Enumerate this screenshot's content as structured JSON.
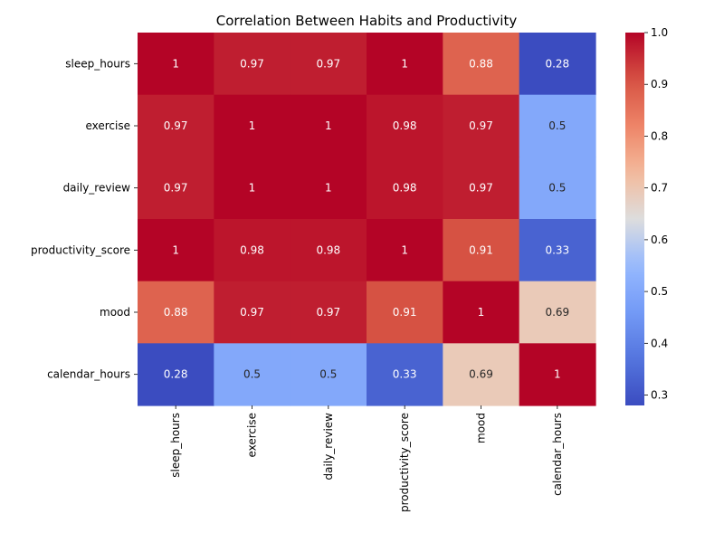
{
  "chart_data": {
    "type": "heatmap",
    "title": "Correlation Between Habits and Productivity",
    "xlabel": "",
    "ylabel": "",
    "rows": [
      "sleep_hours",
      "exercise",
      "daily_review",
      "productivity_score",
      "mood",
      "calendar_hours"
    ],
    "columns": [
      "sleep_hours",
      "exercise",
      "daily_review",
      "productivity_score",
      "mood",
      "calendar_hours"
    ],
    "values": [
      [
        1,
        0.97,
        0.97,
        1,
        0.88,
        0.28
      ],
      [
        0.97,
        1,
        1,
        0.98,
        0.97,
        0.5
      ],
      [
        0.97,
        1,
        1,
        0.98,
        0.97,
        0.5
      ],
      [
        1,
        0.98,
        0.98,
        1,
        0.91,
        0.33
      ],
      [
        0.88,
        0.97,
        0.97,
        0.91,
        1,
        0.69
      ],
      [
        0.28,
        0.5,
        0.5,
        0.33,
        0.69,
        1
      ]
    ],
    "colormap": "coolwarm",
    "colorbar": {
      "range": [
        0.28,
        1.0
      ],
      "ticks": [
        "0.3",
        "0.4",
        "0.5",
        "0.6",
        "0.7",
        "0.8",
        "0.9",
        "1.0"
      ]
    },
    "grid": false,
    "legend": "none"
  }
}
